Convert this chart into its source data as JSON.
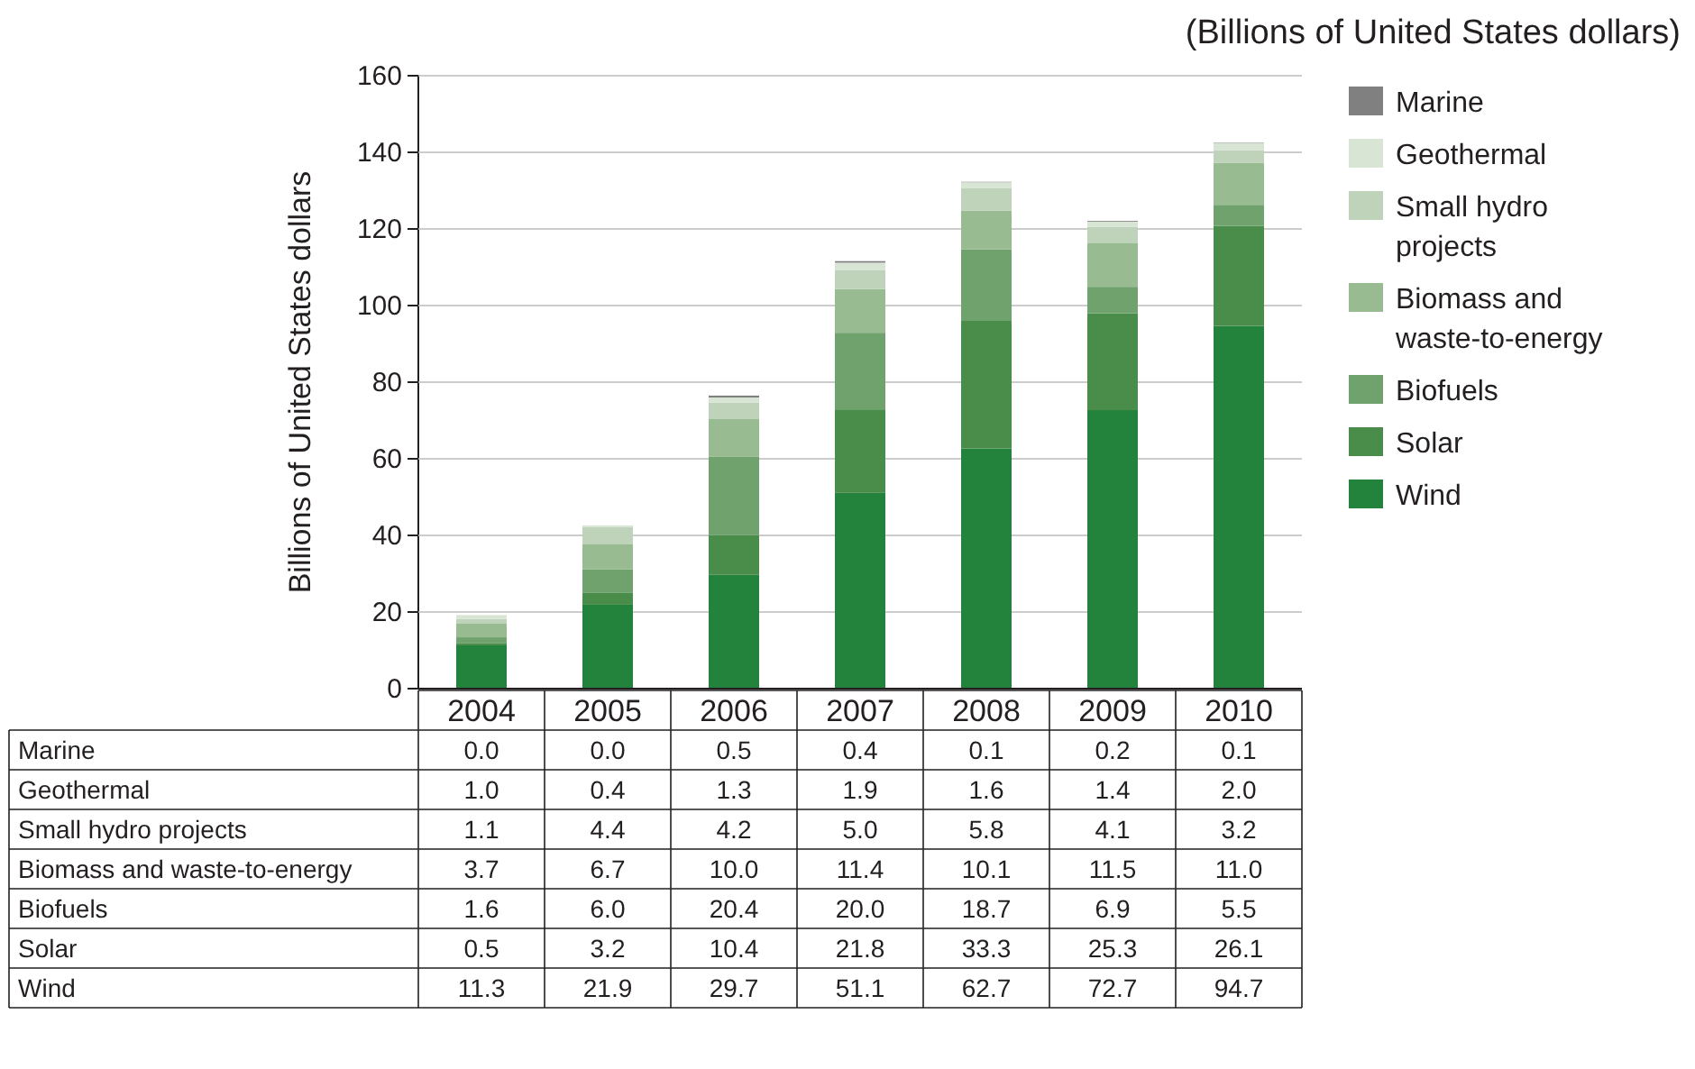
{
  "chart_data": {
    "type": "bar",
    "title": "(Billions of United States dollars)",
    "ylabel": "Billions of United States dollars",
    "categories": [
      "2004",
      "2005",
      "2006",
      "2007",
      "2008",
      "2009",
      "2010"
    ],
    "stacked": true,
    "ylim": [
      0,
      160
    ],
    "yticks": [
      0,
      20,
      40,
      60,
      80,
      100,
      120,
      140,
      160
    ],
    "grid": "y",
    "legend": "right",
    "series": [
      {
        "name": "Wind",
        "color": "#23823c",
        "values": [
          11.3,
          21.9,
          29.7,
          51.1,
          62.7,
          72.7,
          94.7
        ],
        "value_labels": [
          "11.3",
          "21.9",
          "29.7",
          "51.1",
          "62.7",
          "72.7",
          "94.7"
        ]
      },
      {
        "name": "Solar",
        "color": "#4a8c4a",
        "values": [
          0.5,
          3.2,
          10.4,
          21.8,
          33.3,
          25.3,
          26.1
        ],
        "value_labels": [
          "0.5",
          "3.2",
          "10.4",
          "21.8",
          "33.3",
          "25.3",
          "26.1"
        ]
      },
      {
        "name": "Biofuels",
        "color": "#6fa26c",
        "values": [
          1.6,
          6.0,
          20.4,
          20.0,
          18.7,
          6.9,
          5.5
        ],
        "value_labels": [
          "1.6",
          "6.0",
          "20.4",
          "20.0",
          "18.7",
          "6.9",
          "5.5"
        ]
      },
      {
        "name": "Biomass and waste-to-energy",
        "color": "#98bb92",
        "values": [
          3.7,
          6.7,
          10.0,
          11.4,
          10.1,
          11.5,
          11.0
        ],
        "value_labels": [
          "3.7",
          "6.7",
          "10.0",
          "11.4",
          "10.1",
          "11.5",
          "11.0"
        ]
      },
      {
        "name": "Small hydro projects",
        "color": "#bed3b9",
        "values": [
          1.1,
          4.4,
          4.2,
          5.0,
          5.8,
          4.1,
          3.2
        ],
        "value_labels": [
          "1.1",
          "4.4",
          "4.2",
          "5.0",
          "5.8",
          "4.1",
          "3.2"
        ]
      },
      {
        "name": "Geothermal",
        "color": "#d8e4d4",
        "values": [
          1.0,
          0.4,
          1.3,
          1.9,
          1.6,
          1.4,
          2.0
        ],
        "value_labels": [
          "1.0",
          "0.4",
          "1.3",
          "1.9",
          "1.6",
          "1.4",
          "2.0"
        ]
      },
      {
        "name": "Marine",
        "color": "#808080",
        "values": [
          0.0,
          0.0,
          0.5,
          0.4,
          0.1,
          0.2,
          0.1
        ],
        "value_labels": [
          "0.0",
          "0.0",
          "0.5",
          "0.4",
          "0.1",
          "0.2",
          "0.1"
        ]
      }
    ]
  }
}
